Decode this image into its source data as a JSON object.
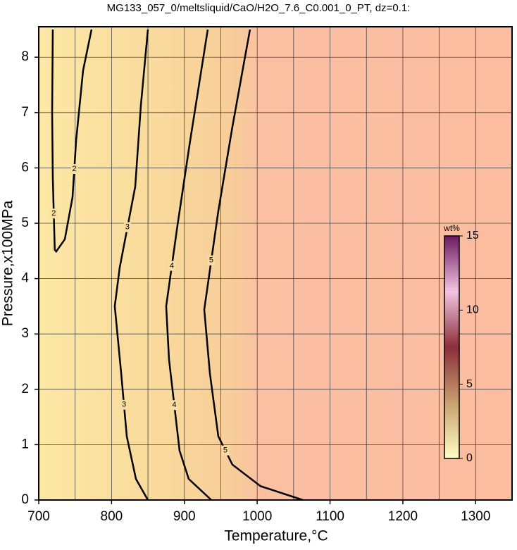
{
  "chart_data": {
    "type": "contour",
    "title": "MG133_057_0/meltsliquid/CaO/H2O_7.6_C0.001_0_PT, dz=0.1:",
    "x_label": "Temperature,°C",
    "y_label": "Pressure,x100MPa",
    "xlim": [
      700,
      1350
    ],
    "ylim": [
      0,
      8.55
    ],
    "xticks": [
      700,
      800,
      900,
      1000,
      1100,
      1200,
      1300
    ],
    "yticks": [
      0,
      1,
      2,
      3,
      4,
      5,
      6,
      7,
      8
    ],
    "grid": true,
    "contours": [
      {
        "level": 2,
        "x": [
          719.3,
          718.4,
          719.3,
          722,
          724,
          735.8,
          746.4,
          751.3,
          760.9,
          772.5
        ],
        "y": [
          8.5,
          7.0,
          5.83,
          4.52,
          4.49,
          4.71,
          5.47,
          6.49,
          7.76,
          8.5
        ]
      },
      {
        "level": 3,
        "x": [
          849.9,
          840.2,
          832.5,
          811.2,
          804.4,
          813.2,
          820.9,
          833.5,
          849.9
        ],
        "y": [
          8.5,
          7.12,
          5.66,
          4.2,
          3.5,
          2.29,
          1.15,
          0.38,
          0
        ]
      },
      {
        "level": 4,
        "x": [
          932.1,
          907.9,
          890.5,
          875,
          878.9,
          893.4,
          906,
          937
        ],
        "y": [
          8.5,
          6.49,
          4.96,
          3.5,
          2.54,
          0.89,
          0.38,
          0
        ]
      },
      {
        "level": 5,
        "x": [
          990.1,
          965.9,
          946.6,
          927.3,
          935,
          946.6,
          965.9,
          1004.6,
          1062.7
        ],
        "y": [
          8.5,
          6.74,
          5.22,
          3.44,
          2.29,
          1.15,
          0.64,
          0.25,
          0
        ]
      }
    ],
    "colorbar": {
      "label": "wt%",
      "lim": [
        0,
        15
      ],
      "ticks": [
        0,
        5,
        10,
        15
      ],
      "colors": [
        "#ffffc4",
        "#c8a070",
        "#8b2e3a",
        "#f2c4e0",
        "#6a1a60"
      ]
    }
  }
}
